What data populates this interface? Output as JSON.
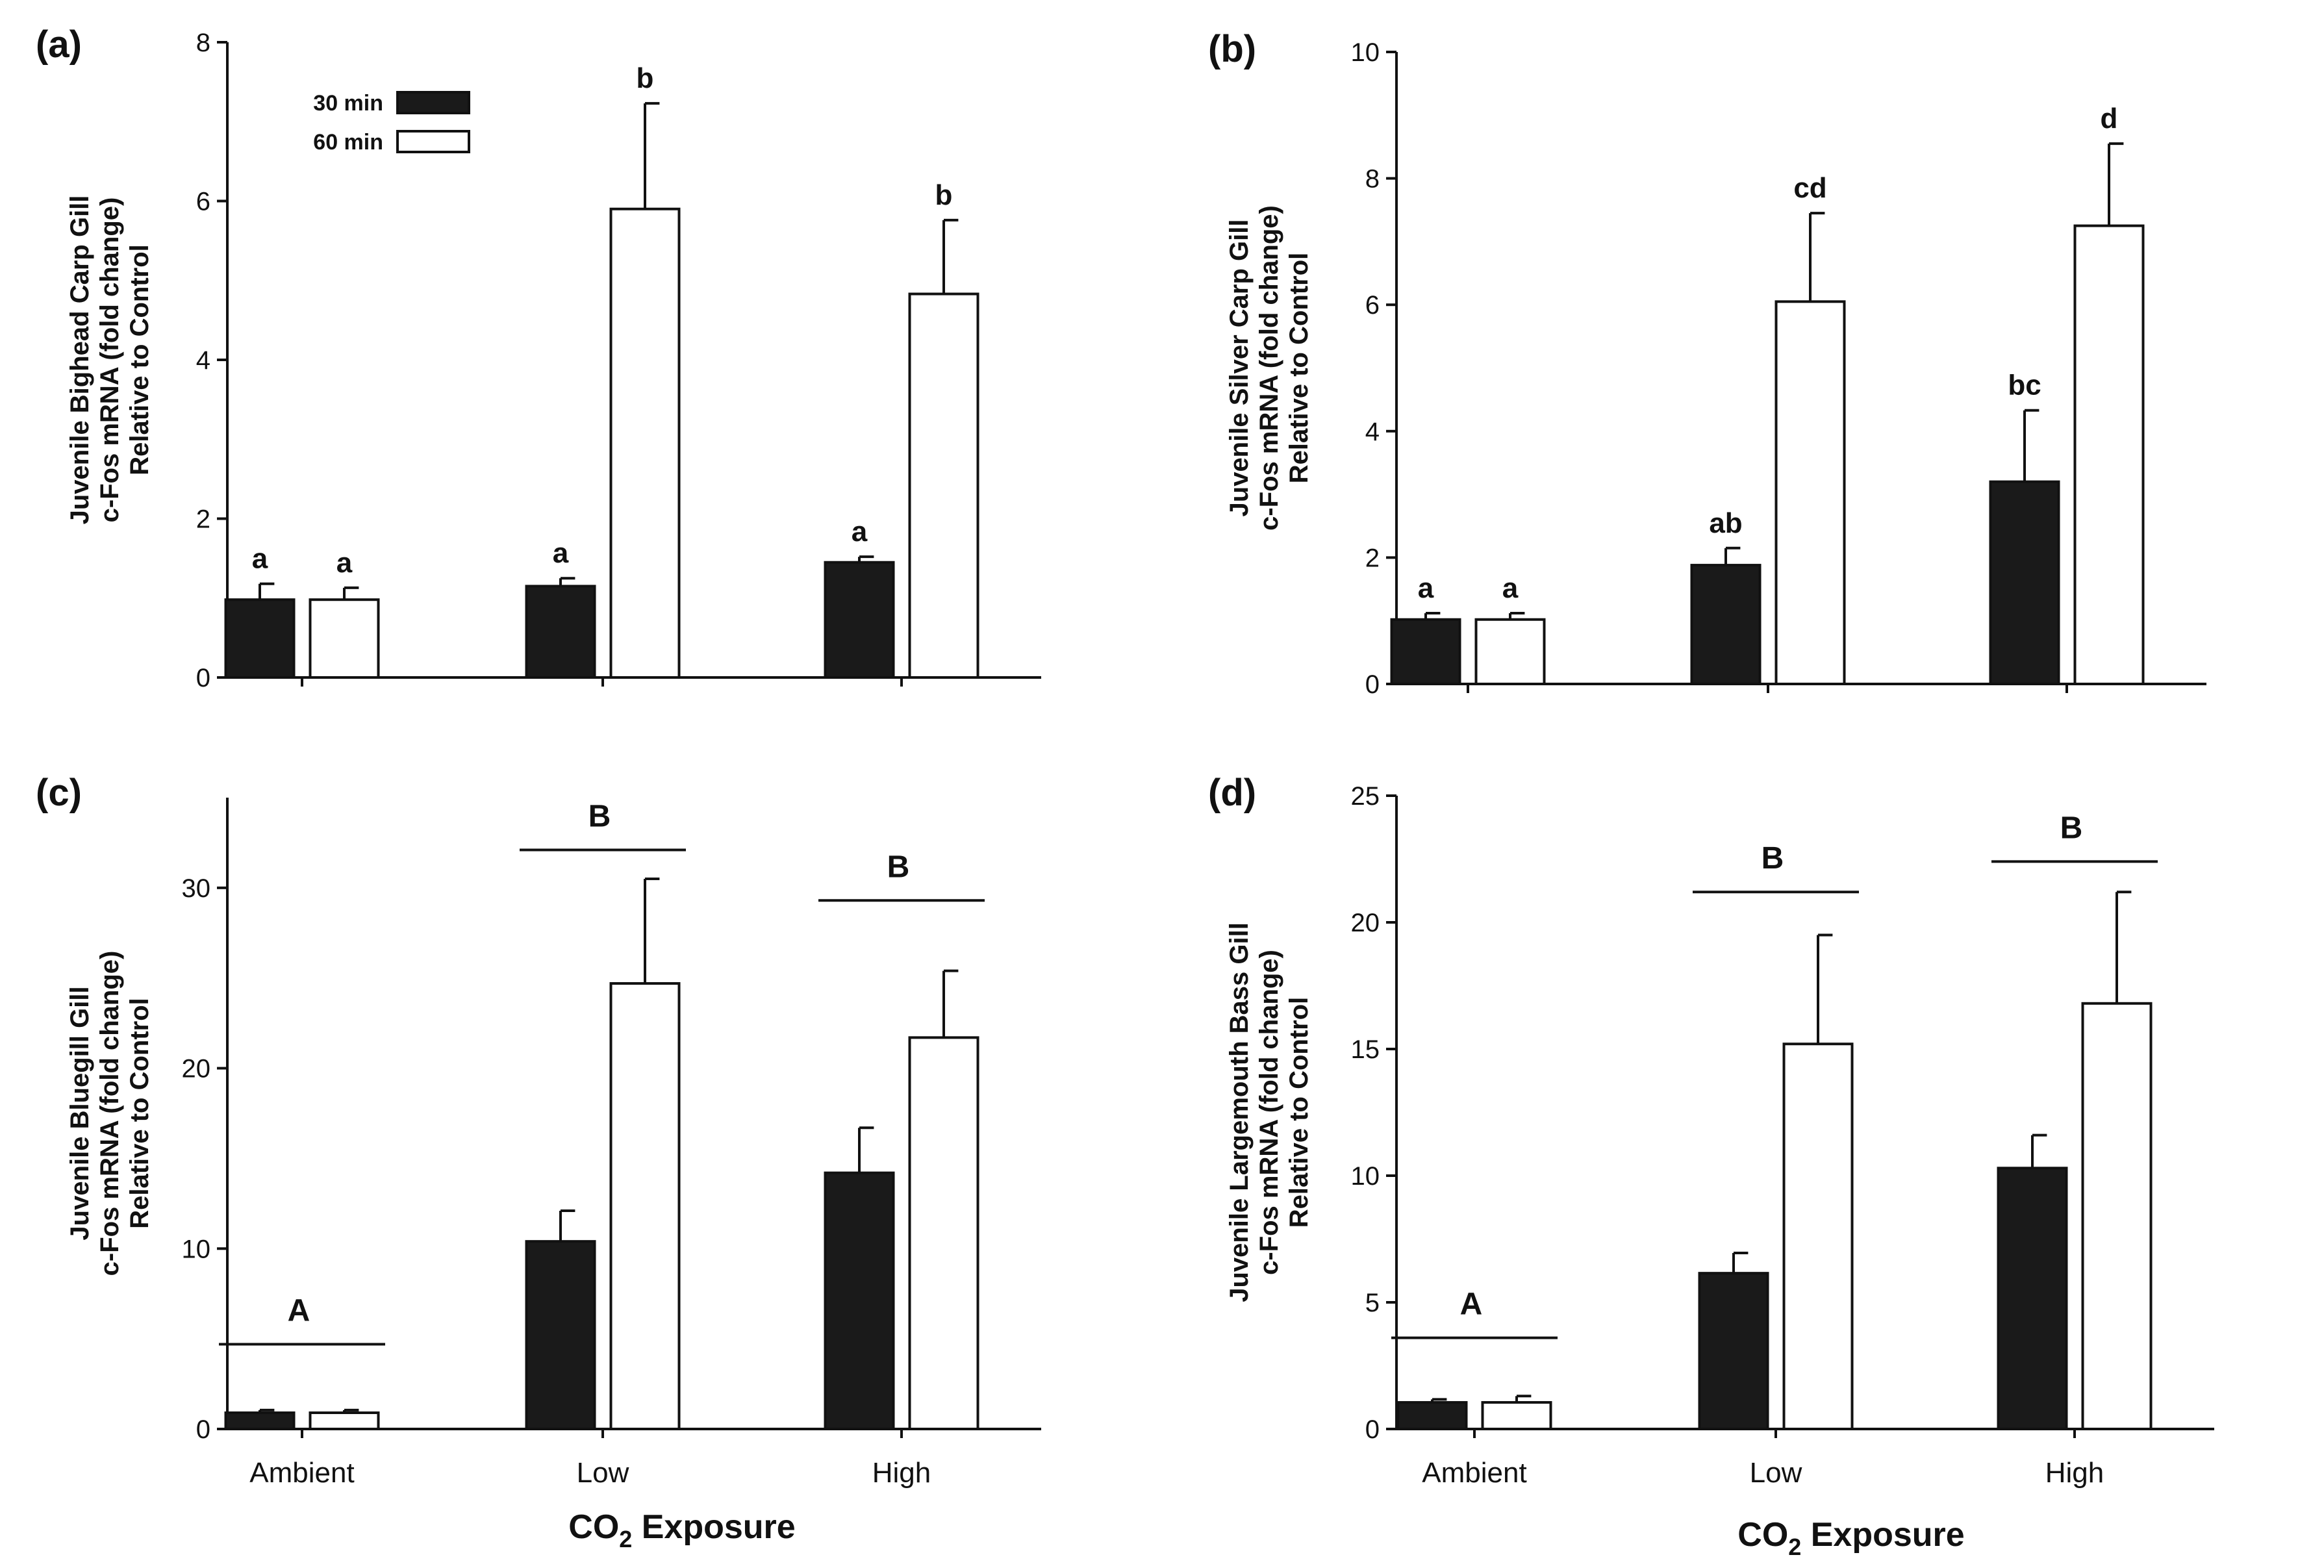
{
  "figure": {
    "x_axis_title": "CO",
    "x_axis_subscript": "2",
    "x_axis_title_rest": " Exposure",
    "legend": [
      {
        "label": "30 min",
        "fill": "#1a1a1a"
      },
      {
        "label": "60 min",
        "fill": "#ffffff"
      }
    ]
  },
  "chart_data": [
    {
      "type": "bar",
      "panel": "(a)",
      "ylabel_lines": [
        "Juvenile Bighead Carp Gill",
        "c-Fos mRNA (fold change)",
        "Relative to Control"
      ],
      "ylim": [
        0,
        8
      ],
      "yticks": [
        "0",
        "2",
        "4",
        "6",
        "8"
      ],
      "categories": [
        "Ambient",
        "Low",
        "High"
      ],
      "show_categories": false,
      "show_legend": true,
      "series": [
        {
          "name": "30 min",
          "values": [
            0.98,
            1.15,
            1.45
          ],
          "errors": [
            0.2,
            0.1,
            0.07
          ],
          "labels": [
            "a",
            "a",
            "a"
          ]
        },
        {
          "name": "60 min",
          "values": [
            0.98,
            5.9,
            4.83
          ],
          "errors": [
            0.15,
            1.33,
            0.93
          ],
          "labels": [
            "a",
            "b",
            "b"
          ]
        }
      ],
      "groups": []
    },
    {
      "type": "bar",
      "panel": "(b)",
      "ylabel_lines": [
        "Juvenile Silver Carp Gill",
        "c-Fos mRNA (fold change)",
        "Relative to Control"
      ],
      "ylim": [
        0,
        10
      ],
      "yticks": [
        "0",
        "2",
        "4",
        "6",
        "8",
        "10"
      ],
      "categories": [
        "Ambient",
        "Low",
        "High"
      ],
      "show_categories": false,
      "show_legend": false,
      "series": [
        {
          "name": "30 min",
          "values": [
            1.02,
            1.88,
            3.2
          ],
          "errors": [
            0.1,
            0.27,
            1.13
          ],
          "labels": [
            "a",
            "ab",
            "bc"
          ]
        },
        {
          "name": "60 min",
          "values": [
            1.02,
            6.05,
            7.25
          ],
          "errors": [
            0.1,
            1.4,
            1.3
          ],
          "labels": [
            "a",
            "cd",
            "d"
          ]
        }
      ],
      "groups": []
    },
    {
      "type": "bar",
      "panel": "(c)",
      "ylabel_lines": [
        "Juvenile Bluegill Gill",
        "c-Fos mRNA (fold change)",
        "Relative to Control"
      ],
      "ylim": [
        0,
        35
      ],
      "yticks": [
        "0",
        "10",
        "20",
        "30"
      ],
      "categories": [
        "Ambient",
        "Low",
        "High"
      ],
      "show_categories": true,
      "show_legend": false,
      "series": [
        {
          "name": "30 min",
          "values": [
            0.9,
            10.4,
            14.2
          ],
          "errors": [
            0.15,
            1.7,
            2.5
          ],
          "labels": [
            "",
            "",
            ""
          ]
        },
        {
          "name": "60 min",
          "values": [
            0.9,
            24.7,
            21.7
          ],
          "errors": [
            0.15,
            5.8,
            3.7
          ],
          "labels": [
            "",
            "",
            ""
          ]
        }
      ],
      "groups": [
        {
          "label": "A",
          "category": 0,
          "y": 4.7
        },
        {
          "label": "B",
          "category": 1,
          "y": 32.1
        },
        {
          "label": "B",
          "category": 2,
          "y": 29.3
        }
      ]
    },
    {
      "type": "bar",
      "panel": "(d)",
      "ylabel_lines": [
        "Juvenile Largemouth Bass Gill",
        "c-Fos mRNA (fold change)",
        "Relative to Control"
      ],
      "ylim": [
        0,
        25
      ],
      "yticks": [
        "0",
        "5",
        "10",
        "15",
        "20",
        "25"
      ],
      "categories": [
        "Ambient",
        "Low",
        "High"
      ],
      "show_categories": true,
      "show_legend": false,
      "series": [
        {
          "name": "30 min",
          "values": [
            1.05,
            6.15,
            10.3
          ],
          "errors": [
            0.12,
            0.8,
            1.3
          ],
          "labels": [
            "",
            "",
            ""
          ]
        },
        {
          "name": "60 min",
          "values": [
            1.05,
            15.2,
            16.8
          ],
          "errors": [
            0.25,
            4.3,
            4.4
          ],
          "labels": [
            "",
            "",
            ""
          ]
        }
      ],
      "groups": [
        {
          "label": "A",
          "category": 0,
          "y": 3.6
        },
        {
          "label": "B",
          "category": 1,
          "y": 21.2
        },
        {
          "label": "B",
          "category": 2,
          "y": 22.4
        }
      ]
    }
  ]
}
